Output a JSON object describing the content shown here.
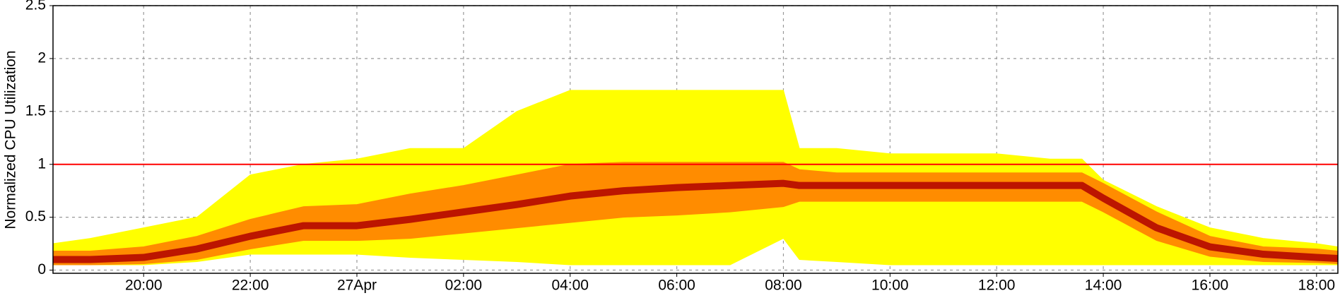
{
  "chart_data": {
    "type": "heatmap-bands",
    "y_label": "Normalized CPU Utilization",
    "x": [
      -5.7,
      -5,
      -4,
      -3,
      -2,
      -1,
      0,
      1,
      2,
      3,
      4,
      5,
      6,
      7,
      8,
      8.3,
      9,
      10,
      11,
      12,
      13,
      13.6,
      14,
      15,
      16,
      17,
      18,
      18.4
    ],
    "bands": [
      {
        "color": "#ffff00",
        "high": [
          0.25,
          0.3,
          0.4,
          0.5,
          0.9,
          1.0,
          1.05,
          1.15,
          1.15,
          1.5,
          1.7,
          1.7,
          1.7,
          1.7,
          1.7,
          1.15,
          1.15,
          1.1,
          1.1,
          1.1,
          1.05,
          1.05,
          0.85,
          0.6,
          0.4,
          0.3,
          0.25,
          0.22
        ],
        "low": [
          0.05,
          0.05,
          0.05,
          0.08,
          0.15,
          0.15,
          0.15,
          0.12,
          0.1,
          0.08,
          0.05,
          0.05,
          0.05,
          0.05,
          0.3,
          0.1,
          0.08,
          0.05,
          0.05,
          0.05,
          0.05,
          0.05,
          0.05,
          0.05,
          0.05,
          0.05,
          0.05,
          0.05
        ]
      },
      {
        "color": "#ff8c00",
        "high": [
          0.18,
          0.18,
          0.22,
          0.32,
          0.48,
          0.6,
          0.62,
          0.72,
          0.8,
          0.9,
          1.0,
          1.02,
          1.02,
          1.02,
          1.02,
          0.95,
          0.92,
          0.92,
          0.92,
          0.92,
          0.92,
          0.92,
          0.82,
          0.55,
          0.32,
          0.22,
          0.2,
          0.18
        ],
        "low": [
          0.05,
          0.05,
          0.06,
          0.1,
          0.2,
          0.28,
          0.28,
          0.3,
          0.35,
          0.4,
          0.45,
          0.5,
          0.52,
          0.55,
          0.6,
          0.65,
          0.65,
          0.65,
          0.65,
          0.65,
          0.65,
          0.65,
          0.55,
          0.28,
          0.13,
          0.08,
          0.07,
          0.06
        ]
      }
    ],
    "core": {
      "color": "#b00000",
      "values": [
        0.1,
        0.1,
        0.12,
        0.2,
        0.32,
        0.42,
        0.42,
        0.48,
        0.55,
        0.62,
        0.7,
        0.75,
        0.78,
        0.8,
        0.82,
        0.8,
        0.8,
        0.8,
        0.8,
        0.8,
        0.8,
        0.8,
        0.68,
        0.4,
        0.22,
        0.15,
        0.12,
        0.11
      ]
    },
    "reference_line": {
      "value": 1,
      "color": "#ff0000"
    },
    "xlim": [
      -5.7,
      18.4
    ],
    "xticks": [
      {
        "value": -4,
        "label": "20:00"
      },
      {
        "value": -2,
        "label": "22:00"
      },
      {
        "value": 0,
        "label": "27Apr"
      },
      {
        "value": 2,
        "label": "02:00"
      },
      {
        "value": 4,
        "label": "04:00"
      },
      {
        "value": 6,
        "label": "06:00"
      },
      {
        "value": 8,
        "label": "08:00"
      },
      {
        "value": 10,
        "label": "10:00"
      },
      {
        "value": 12,
        "label": "12:00"
      },
      {
        "value": 14,
        "label": "14:00"
      },
      {
        "value": 16,
        "label": "16:00"
      },
      {
        "value": 18,
        "label": "18:00"
      }
    ],
    "ylim": [
      -0.03,
      2.5
    ],
    "yticks": [
      0,
      0.5,
      1,
      1.5,
      2,
      2.5
    ],
    "grid": true
  }
}
